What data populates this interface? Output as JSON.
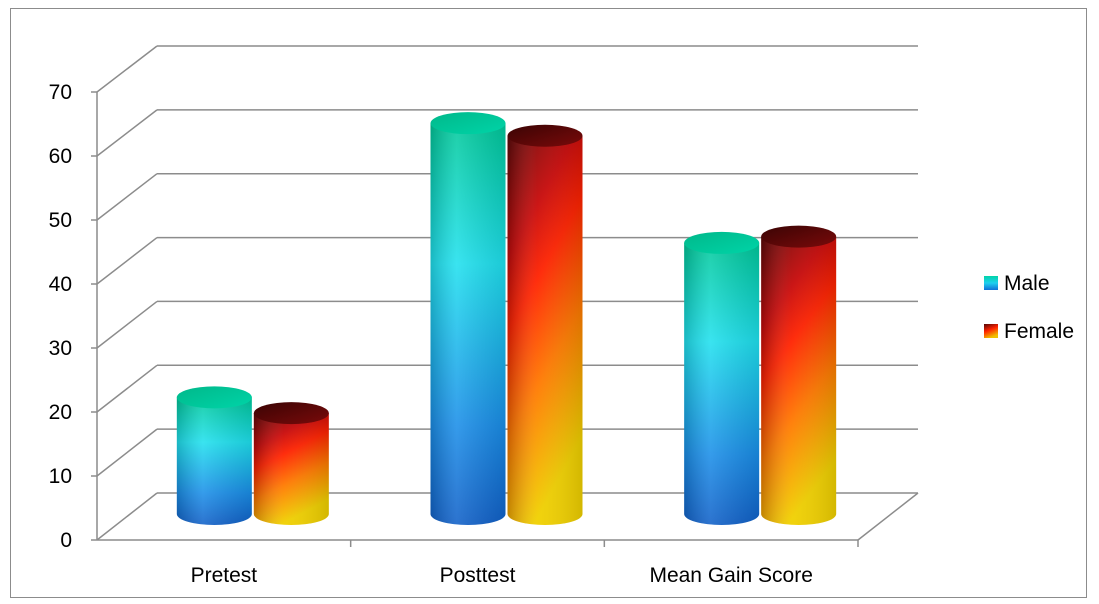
{
  "chart_data": {
    "type": "bar",
    "style": "3d-cylinder",
    "categories": [
      "Pretest",
      "Posttest",
      "Mean Gain Score"
    ],
    "series": [
      {
        "name": "Male",
        "values": [
          18.5,
          62,
          43
        ],
        "color": "#1fbfd8"
      },
      {
        "name": "Female",
        "values": [
          16,
          60,
          44
        ],
        "color": "#e02010"
      }
    ],
    "ylim": [
      0,
      70
    ],
    "yticks": [
      "0",
      "10",
      "20",
      "30",
      "40",
      "50",
      "60",
      "70"
    ],
    "grid": true,
    "legend": "right",
    "title": "",
    "xlabel": "",
    "ylabel": ""
  }
}
